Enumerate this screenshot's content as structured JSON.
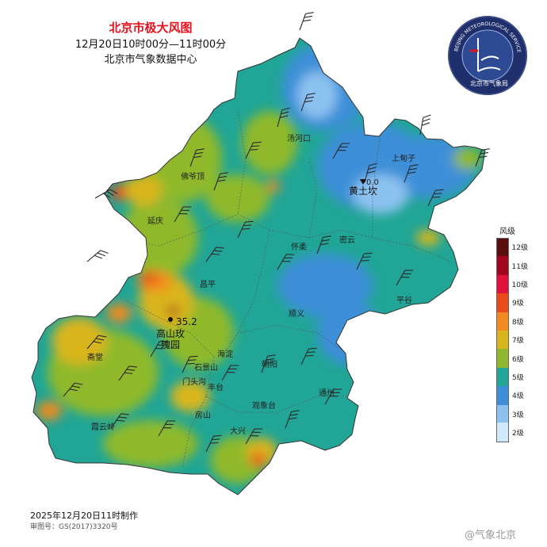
{
  "header": {
    "title": "北京市极大风图",
    "time_range": "12月20日10时00分—11时00分",
    "source": "北京市气象数据中心"
  },
  "legend": {
    "title": "风级",
    "levels": [
      {
        "label": "12级",
        "color": "#5c0f0f"
      },
      {
        "label": "11级",
        "color": "#a0071c"
      },
      {
        "label": "10级",
        "color": "#e0123c"
      },
      {
        "label": "9级",
        "color": "#ea4b1c"
      },
      {
        "label": "8级",
        "color": "#f28b1f"
      },
      {
        "label": "7级",
        "color": "#d9b51c"
      },
      {
        "label": "6级",
        "color": "#8fb92c"
      },
      {
        "label": "5级",
        "color": "#20a596"
      },
      {
        "label": "4级",
        "color": "#3c8fd8"
      },
      {
        "label": "3级",
        "color": "#8cc2f0"
      },
      {
        "label": "2级",
        "color": "#cfe9fb"
      }
    ]
  },
  "places": {
    "tanghekou": "汤河口",
    "shangdianzi": "上甸子",
    "huangtukan": "黄土坎",
    "badaling": "佛爷顶",
    "yanqing": "延庆",
    "huairou": "怀柔",
    "miyun": "密云",
    "changping": "昌平",
    "pinggu": "平谷",
    "shunyi": "顺义",
    "gaoshan_1": "高山玫",
    "gaoshan_2": "瑰园",
    "haidian": "海淀",
    "shijingshan": "石景山",
    "chaoyang": "朝阳",
    "zhaitang": "斋堂",
    "mentougou": "门头沟",
    "fengtai": "丰台",
    "guanxiangtai": "观象台",
    "tongzhou": "通州",
    "fangshan": "房山",
    "xiayunling": "霞云岭",
    "daxing": "大兴"
  },
  "readings": {
    "max_value": "35.2",
    "huangtukan_value": "0.0"
  },
  "logo": {
    "ring_text": "BEIJING METEOROLOGICAL SERVICE",
    "cn_text": "北京市气象局"
  },
  "footer": {
    "made_time": "2025年12月20日11时制作",
    "map_approval": "审图号：GS(2017)3320号"
  },
  "watermark": "@气象北京"
}
